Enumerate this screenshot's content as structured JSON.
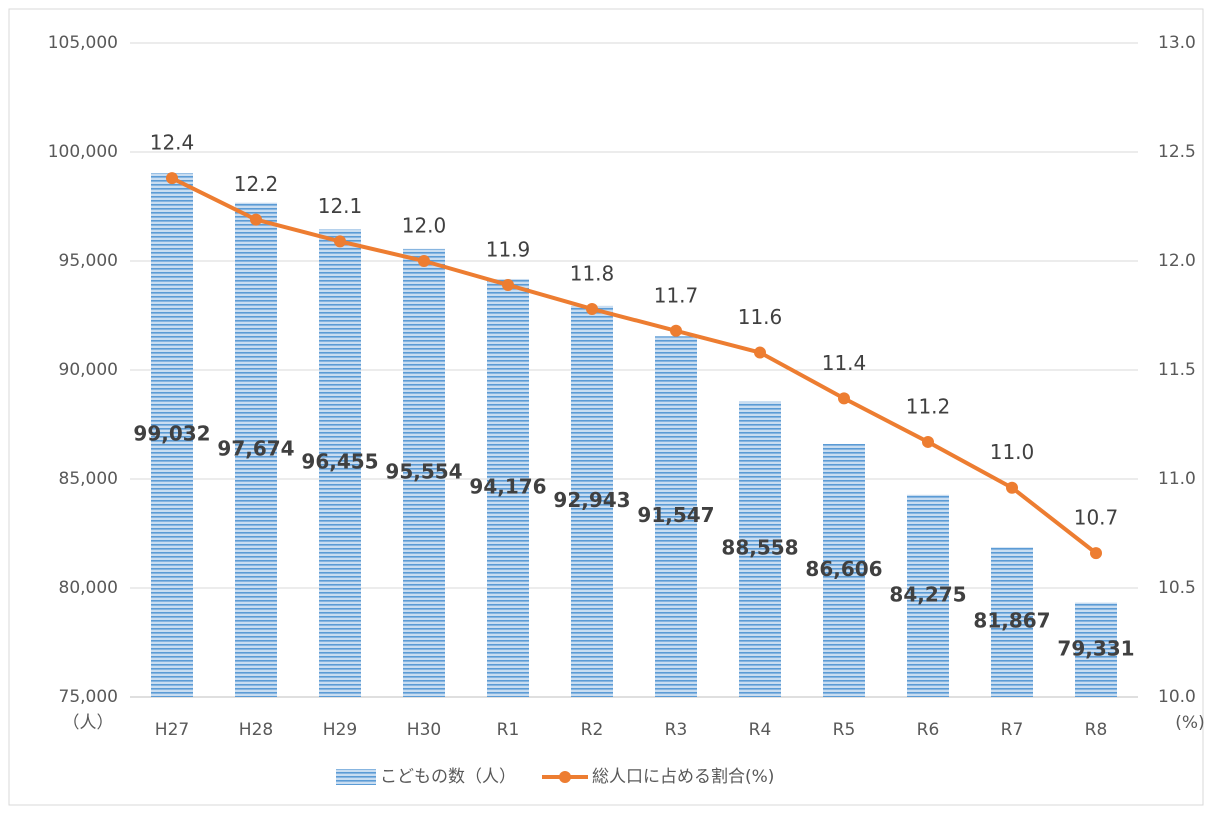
{
  "chart_data": {
    "type": "bar-line",
    "categories": [
      "H27",
      "H28",
      "H29",
      "H30",
      "R1",
      "R2",
      "R3",
      "R4",
      "R5",
      "R6",
      "R7",
      "R8"
    ],
    "series": [
      {
        "name": "こどもの数（人）",
        "type": "bar",
        "color": "#5b9bd5",
        "axis": "y",
        "values": [
          99032,
          97674,
          96455,
          95554,
          94176,
          92943,
          91547,
          88558,
          86606,
          84275,
          81867,
          79331
        ],
        "value_labels": [
          "99,032",
          "97,674",
          "96,455",
          "95,554",
          "94,176",
          "92,943",
          "91,547",
          "88,558",
          "86,606",
          "84,275",
          "81,867",
          "79,331"
        ]
      },
      {
        "name": "総人口に占める割合(%)",
        "type": "line",
        "color": "#ed7d31",
        "axis": "y2",
        "values": [
          12.38,
          12.19,
          12.09,
          12.0,
          11.89,
          11.78,
          11.68,
          11.58,
          11.37,
          11.17,
          10.96,
          10.66
        ],
        "value_labels": [
          "12.4",
          "12.2",
          "12.1",
          "12.0",
          "11.9",
          "11.8",
          "11.7",
          "11.6",
          "11.4",
          "11.2",
          "11.0",
          "10.7"
        ]
      }
    ],
    "y_axis_label": "（人）",
    "y2_axis_label": "(%)",
    "ylim": [
      75000,
      105000
    ],
    "yticks": [
      {
        "value": 75000,
        "label": "75,000"
      },
      {
        "value": 80000,
        "label": "80,000"
      },
      {
        "value": 85000,
        "label": "85,000"
      },
      {
        "value": 90000,
        "label": "90,000"
      },
      {
        "value": 95000,
        "label": "95,000"
      },
      {
        "value": 100000,
        "label": "100,000"
      },
      {
        "value": 105000,
        "label": "105,000"
      }
    ],
    "y2lim": [
      10.0,
      13.0
    ],
    "y2ticks": [
      {
        "value": 10.0,
        "label": "10.0"
      },
      {
        "value": 10.5,
        "label": "10.5"
      },
      {
        "value": 11.0,
        "label": "11.0"
      },
      {
        "value": 11.5,
        "label": "11.5"
      },
      {
        "value": 12.0,
        "label": "12.0"
      },
      {
        "value": 12.5,
        "label": "12.5"
      },
      {
        "value": 13.0,
        "label": "13.0"
      }
    ],
    "grid": true,
    "legend": "bottom"
  }
}
